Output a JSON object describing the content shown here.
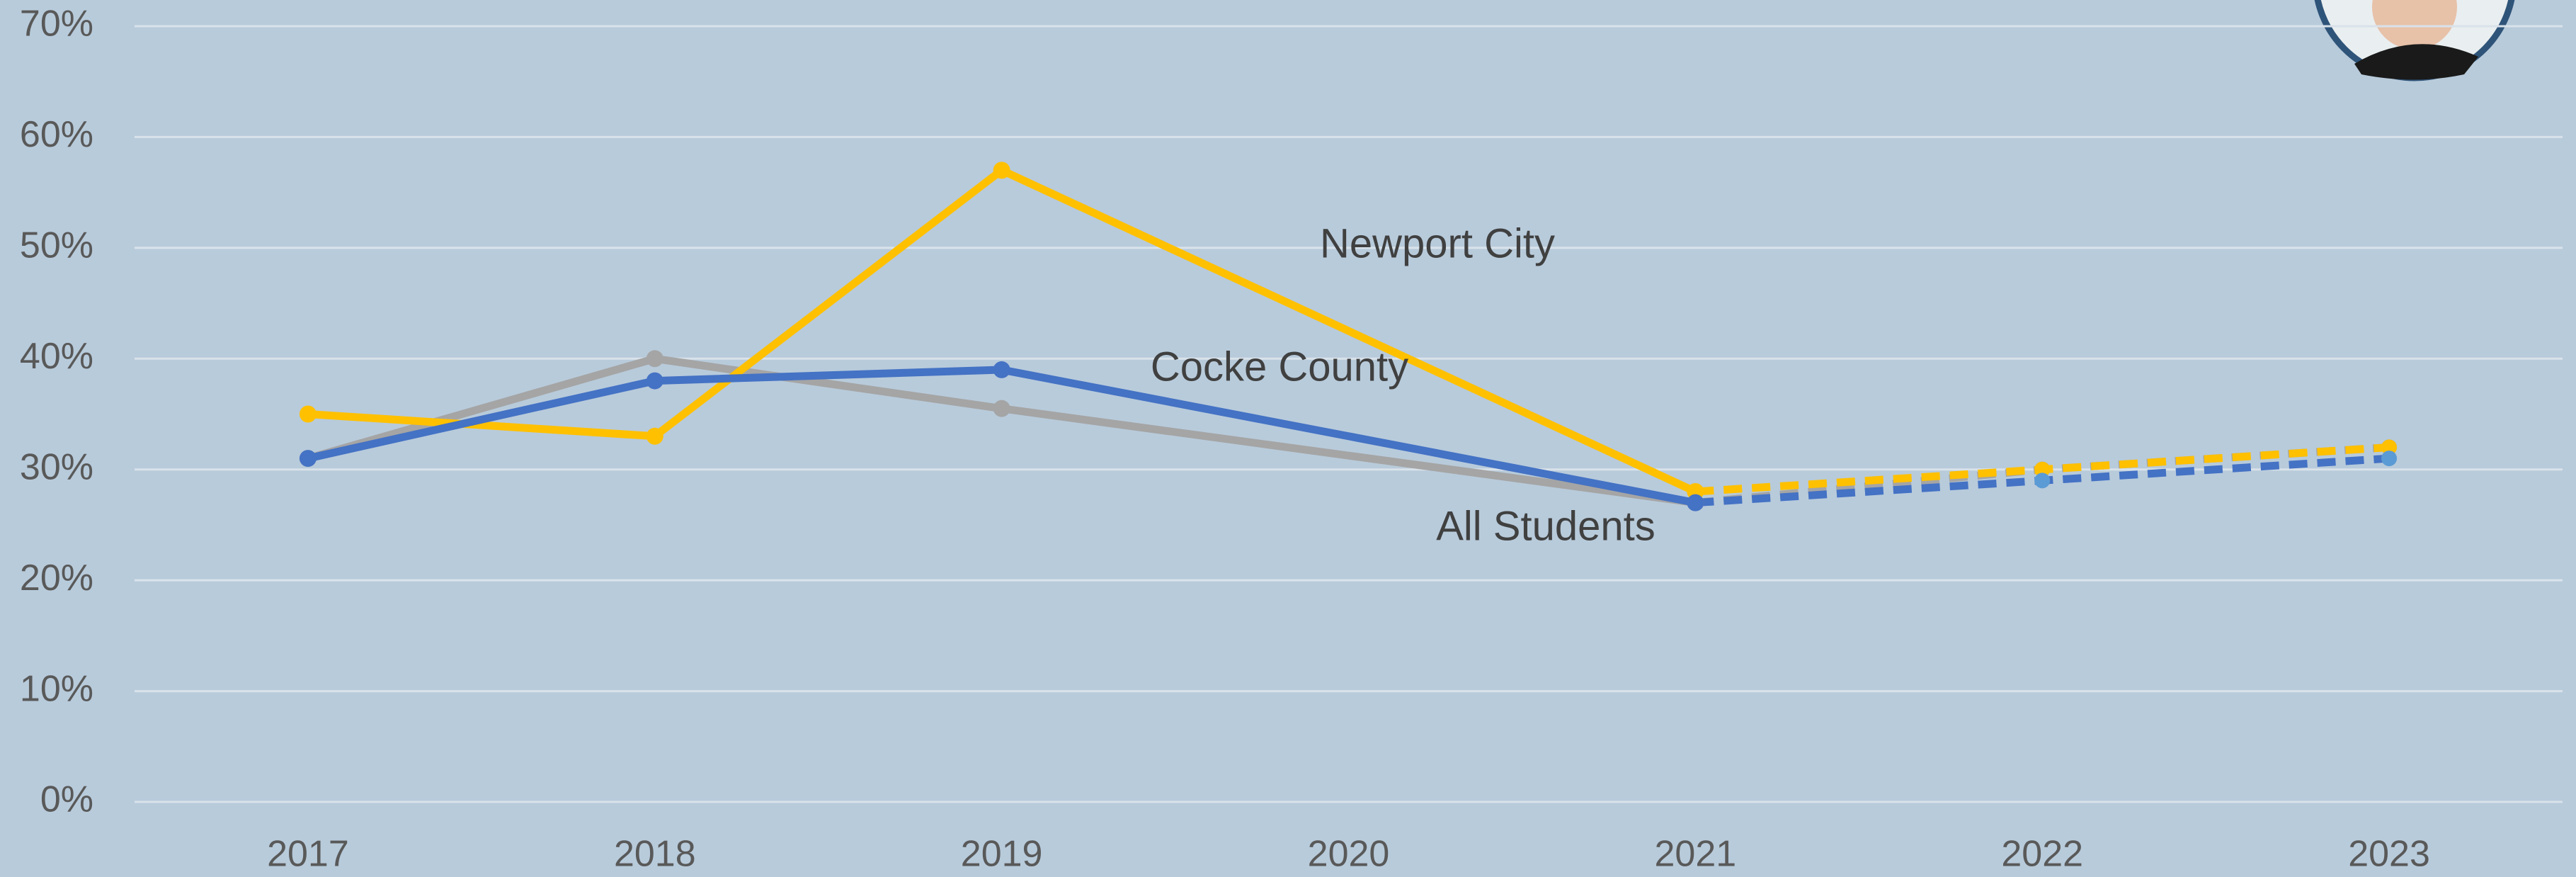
{
  "chart_data": {
    "type": "line",
    "xlim": [
      2016.5,
      2023.5
    ],
    "xticks": [
      2017,
      2018,
      2019,
      2020,
      2021,
      2022,
      2023
    ],
    "ylim": [
      0,
      70
    ],
    "yticks": [
      {
        "value": 0,
        "label": "0%"
      },
      {
        "value": 10,
        "label": "10%"
      },
      {
        "value": 20,
        "label": "20%"
      },
      {
        "value": 30,
        "label": "30%"
      },
      {
        "value": 40,
        "label": "40%"
      },
      {
        "value": 50,
        "label": "50%"
      },
      {
        "value": 60,
        "label": "60%"
      },
      {
        "value": 70,
        "label": "70%"
      }
    ],
    "grid": true,
    "series": [
      {
        "name": "All Students",
        "color": "#a5a5a5",
        "x": [
          2017,
          2018,
          2019,
          2021
        ],
        "values": [
          31,
          40,
          35.5,
          27
        ],
        "projection": {
          "x": [
            2021,
            2022,
            2023
          ],
          "values": [
            27,
            30,
            32
          ],
          "marker_color": "#7f7f7f"
        }
      },
      {
        "name": "Newport City",
        "color": "#ffc000",
        "x": [
          2017,
          2018,
          2019,
          2021
        ],
        "values": [
          35,
          33,
          57,
          28
        ],
        "projection": {
          "x": [
            2021,
            2022,
            2023
          ],
          "values": [
            28,
            30,
            32
          ],
          "marker_color": "#ffc000"
        }
      },
      {
        "name": "Cocke County",
        "color": "#4472c4",
        "x": [
          2017,
          2018,
          2019,
          2021
        ],
        "values": [
          31,
          38,
          39,
          27
        ],
        "projection": {
          "x": [
            2021,
            2022,
            2023
          ],
          "values": [
            27,
            29,
            31
          ],
          "marker_color": "#5b9bd5"
        }
      }
    ]
  }
}
